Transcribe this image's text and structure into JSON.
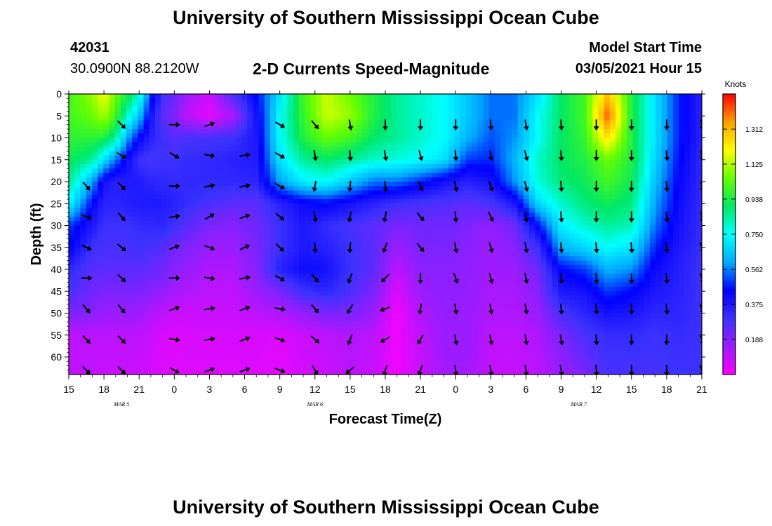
{
  "header": {
    "title": "University of Southern Mississippi Ocean Cube",
    "station_id": "42031",
    "station_coords": "30.0900N 88.2120W",
    "model_start_label": "Model Start Time",
    "model_start_time": "03/05/2021 Hour 15"
  },
  "footer": {
    "title": "University of Southern Mississippi Ocean Cube"
  },
  "chart_data": {
    "type": "heatmap",
    "title": "2-D Currents Speed-Magnitude",
    "xlabel": "Forecast Time(Z)",
    "ylabel": "Depth (ft)",
    "x_tick_labels": [
      "15",
      "18",
      "21",
      "0",
      "3",
      "6",
      "9",
      "12",
      "15",
      "18",
      "21",
      "0",
      "3",
      "6",
      "9",
      "12",
      "15",
      "18",
      "21"
    ],
    "x_hours": [
      0,
      3,
      6,
      9,
      12,
      15,
      18,
      21,
      24,
      27,
      30,
      33,
      36,
      39,
      42,
      45,
      48,
      51,
      54
    ],
    "date_labels": [
      {
        "label": "MAR 5",
        "hour": 4.5
      },
      {
        "label": "MAR 6",
        "hour": 21
      },
      {
        "label": "MAR 7",
        "hour": 43.5
      }
    ],
    "y_ticks": [
      0,
      5,
      10,
      15,
      20,
      25,
      30,
      35,
      40,
      45,
      50,
      55,
      60
    ],
    "ylim": [
      0,
      64
    ],
    "xlim": [
      0,
      54
    ],
    "colorbar": {
      "label": "Knots",
      "ticks": [
        0.188,
        0.375,
        0.562,
        0.75,
        0.938,
        1.125,
        1.312
      ],
      "tick_labels": [
        "0.188",
        "0.375",
        "0.562",
        "0.750",
        "0.938",
        "1.125",
        "1.312"
      ],
      "range": [
        0.0,
        1.5
      ],
      "colors": [
        "#ff00ff",
        "#9b1cff",
        "#3c32ff",
        "#0000ff",
        "#00aaff",
        "#00ffff",
        "#00e864",
        "#64ff00",
        "#ffff00",
        "#ffa000",
        "#ff0000"
      ]
    },
    "speed_anchor_hours": [
      0,
      2,
      3,
      4,
      5,
      6,
      7,
      8,
      9,
      10,
      12,
      14,
      16,
      18,
      20,
      22,
      24,
      26,
      28,
      30,
      32,
      34,
      36,
      38,
      40,
      42,
      44,
      46,
      48,
      50,
      52,
      54
    ],
    "speed_anchor_depths": [
      0,
      5,
      10,
      15,
      20,
      25,
      30,
      35,
      40,
      45,
      50,
      55,
      64
    ],
    "speed_grid": [
      [
        1.0,
        1.0,
        0.97,
        0.92,
        0.86,
        0.75,
        0.5,
        0.46,
        0.33,
        0.28,
        0.2,
        0.1,
        0.1
      ],
      [
        1.1,
        1.05,
        0.97,
        0.85,
        0.6,
        0.45,
        0.38,
        0.3,
        0.26,
        0.22,
        0.18,
        0.1,
        0.09
      ],
      [
        1.2,
        1.12,
        0.95,
        0.7,
        0.4,
        0.35,
        0.3,
        0.28,
        0.25,
        0.2,
        0.15,
        0.1,
        0.08
      ],
      [
        1.05,
        1.0,
        0.85,
        0.55,
        0.35,
        0.34,
        0.3,
        0.28,
        0.25,
        0.2,
        0.15,
        0.1,
        0.08
      ],
      [
        0.95,
        0.8,
        0.6,
        0.42,
        0.37,
        0.36,
        0.3,
        0.28,
        0.25,
        0.2,
        0.15,
        0.1,
        0.08
      ],
      [
        0.8,
        0.65,
        0.45,
        0.3,
        0.37,
        0.37,
        0.32,
        0.3,
        0.25,
        0.2,
        0.15,
        0.1,
        0.08
      ],
      [
        0.5,
        0.4,
        0.35,
        0.28,
        0.34,
        0.38,
        0.33,
        0.28,
        0.24,
        0.18,
        0.12,
        0.08,
        0.06
      ],
      [
        0.3,
        0.25,
        0.3,
        0.3,
        0.33,
        0.37,
        0.34,
        0.26,
        0.22,
        0.16,
        0.1,
        0.06,
        0.05
      ],
      [
        0.22,
        0.2,
        0.25,
        0.3,
        0.32,
        0.35,
        0.3,
        0.22,
        0.18,
        0.14,
        0.08,
        0.05,
        0.04
      ],
      [
        0.15,
        0.1,
        0.28,
        0.32,
        0.33,
        0.32,
        0.26,
        0.2,
        0.16,
        0.12,
        0.08,
        0.06,
        0.05
      ],
      [
        0.08,
        0.04,
        0.28,
        0.33,
        0.33,
        0.28,
        0.2,
        0.15,
        0.12,
        0.1,
        0.08,
        0.06,
        0.05
      ],
      [
        0.28,
        0.12,
        0.3,
        0.35,
        0.33,
        0.25,
        0.18,
        0.15,
        0.12,
        0.1,
        0.08,
        0.06,
        0.05
      ],
      [
        0.45,
        0.4,
        0.38,
        0.37,
        0.34,
        0.25,
        0.22,
        0.2,
        0.18,
        0.15,
        0.1,
        0.06,
        0.05
      ],
      [
        0.7,
        0.75,
        0.75,
        0.7,
        0.6,
        0.35,
        0.3,
        0.3,
        0.35,
        0.2,
        0.12,
        0.05,
        0.04
      ],
      [
        1.0,
        0.98,
        0.95,
        0.85,
        0.72,
        0.42,
        0.38,
        0.38,
        0.42,
        0.3,
        0.16,
        0.08,
        0.06
      ],
      [
        1.15,
        1.15,
        1.05,
        0.9,
        0.75,
        0.45,
        0.32,
        0.35,
        0.4,
        0.34,
        0.2,
        0.1,
        0.08
      ],
      [
        1.05,
        1.1,
        1.0,
        0.85,
        0.65,
        0.4,
        0.28,
        0.3,
        0.3,
        0.28,
        0.2,
        0.12,
        0.1
      ],
      [
        0.95,
        0.95,
        0.9,
        0.8,
        0.55,
        0.35,
        0.25,
        0.25,
        0.25,
        0.2,
        0.15,
        0.1,
        0.08
      ],
      [
        0.85,
        0.85,
        0.85,
        0.78,
        0.55,
        0.3,
        0.2,
        0.15,
        0.1,
        0.05,
        0.02,
        0.02,
        0.02
      ],
      [
        0.8,
        0.8,
        0.8,
        0.75,
        0.48,
        0.28,
        0.22,
        0.2,
        0.18,
        0.15,
        0.12,
        0.1,
        0.08
      ],
      [
        0.75,
        0.75,
        0.75,
        0.7,
        0.4,
        0.27,
        0.22,
        0.2,
        0.18,
        0.17,
        0.16,
        0.15,
        0.14
      ],
      [
        0.65,
        0.65,
        0.62,
        0.5,
        0.35,
        0.25,
        0.2,
        0.18,
        0.17,
        0.16,
        0.15,
        0.15,
        0.14
      ],
      [
        0.55,
        0.55,
        0.52,
        0.48,
        0.4,
        0.28,
        0.16,
        0.15,
        0.14,
        0.13,
        0.12,
        0.1,
        0.09
      ],
      [
        0.55,
        0.55,
        0.58,
        0.62,
        0.58,
        0.38,
        0.22,
        0.18,
        0.15,
        0.13,
        0.12,
        0.1,
        0.08
      ],
      [
        0.7,
        0.75,
        0.75,
        0.8,
        0.78,
        0.68,
        0.45,
        0.3,
        0.22,
        0.18,
        0.15,
        0.12,
        0.1
      ],
      [
        0.9,
        0.9,
        0.9,
        0.9,
        0.88,
        0.8,
        0.72,
        0.62,
        0.45,
        0.38,
        0.28,
        0.2,
        0.15
      ],
      [
        1.0,
        1.0,
        0.98,
        0.95,
        0.92,
        0.88,
        0.8,
        0.68,
        0.5,
        0.4,
        0.34,
        0.28,
        0.2
      ],
      [
        1.3,
        1.42,
        1.25,
        1.05,
        1.0,
        0.92,
        0.85,
        0.75,
        0.62,
        0.5,
        0.4,
        0.32,
        0.28
      ],
      [
        0.95,
        0.95,
        0.95,
        0.95,
        0.92,
        0.88,
        0.82,
        0.7,
        0.58,
        0.45,
        0.38,
        0.32,
        0.28
      ],
      [
        0.7,
        0.7,
        0.7,
        0.68,
        0.64,
        0.6,
        0.55,
        0.48,
        0.42,
        0.38,
        0.34,
        0.3,
        0.28
      ],
      [
        0.48,
        0.48,
        0.48,
        0.46,
        0.44,
        0.42,
        0.4,
        0.38,
        0.36,
        0.35,
        0.34,
        0.32,
        0.3
      ],
      [
        0.35,
        0.35,
        0.35,
        0.33,
        0.33,
        0.32,
        0.32,
        0.31,
        0.3,
        0.3,
        0.3,
        0.3,
        0.3
      ]
    ],
    "arrow_hours": [
      1.5,
      4.5,
      9,
      12,
      15,
      18,
      21,
      24,
      27,
      30,
      33,
      36,
      39,
      42,
      45,
      48,
      51,
      54
    ],
    "arrow_depths": [
      7,
      14,
      21,
      28,
      35,
      42,
      49,
      56,
      63
    ],
    "arrow_dir_deg": [
      [
        null,
        null,
        140,
        110,
        115,
        90,
        140,
        135,
        135
      ],
      [
        135,
        120,
        135,
        140,
        130,
        135,
        140,
        135,
        135
      ],
      [
        90,
        120,
        90,
        80,
        70,
        90,
        70,
        100,
        120
      ],
      [
        70,
        100,
        80,
        60,
        110,
        100,
        80,
        80,
        70
      ],
      [
        null,
        80,
        80,
        70,
        65,
        80,
        70,
        70,
        70
      ],
      [
        120,
        120,
        120,
        130,
        135,
        120,
        100,
        110,
        110
      ],
      [
        140,
        170,
        190,
        170,
        175,
        140,
        140,
        130,
        150
      ],
      [
        170,
        175,
        185,
        190,
        185,
        200,
        210,
        200,
        230
      ],
      [
        180,
        170,
        175,
        190,
        200,
        225,
        250,
        240,
        200
      ],
      [
        180,
        165,
        160,
        140,
        140,
        180,
        190,
        210,
        200
      ],
      [
        180,
        175,
        170,
        175,
        170,
        160,
        170,
        170,
        170
      ],
      [
        175,
        170,
        160,
        155,
        165,
        165,
        170,
        170,
        170
      ],
      [
        170,
        165,
        165,
        170,
        170,
        170,
        170,
        170,
        170
      ],
      [
        175,
        175,
        175,
        175,
        175,
        175,
        175,
        170,
        170
      ],
      [
        180,
        180,
        180,
        180,
        175,
        175,
        175,
        175,
        175
      ],
      [
        180,
        180,
        180,
        180,
        175,
        180,
        180,
        180,
        180
      ],
      [
        180,
        175,
        175,
        175,
        175,
        175,
        175,
        180,
        180
      ],
      [
        170,
        170,
        170,
        170,
        160,
        160,
        160,
        160,
        160
      ]
    ]
  }
}
